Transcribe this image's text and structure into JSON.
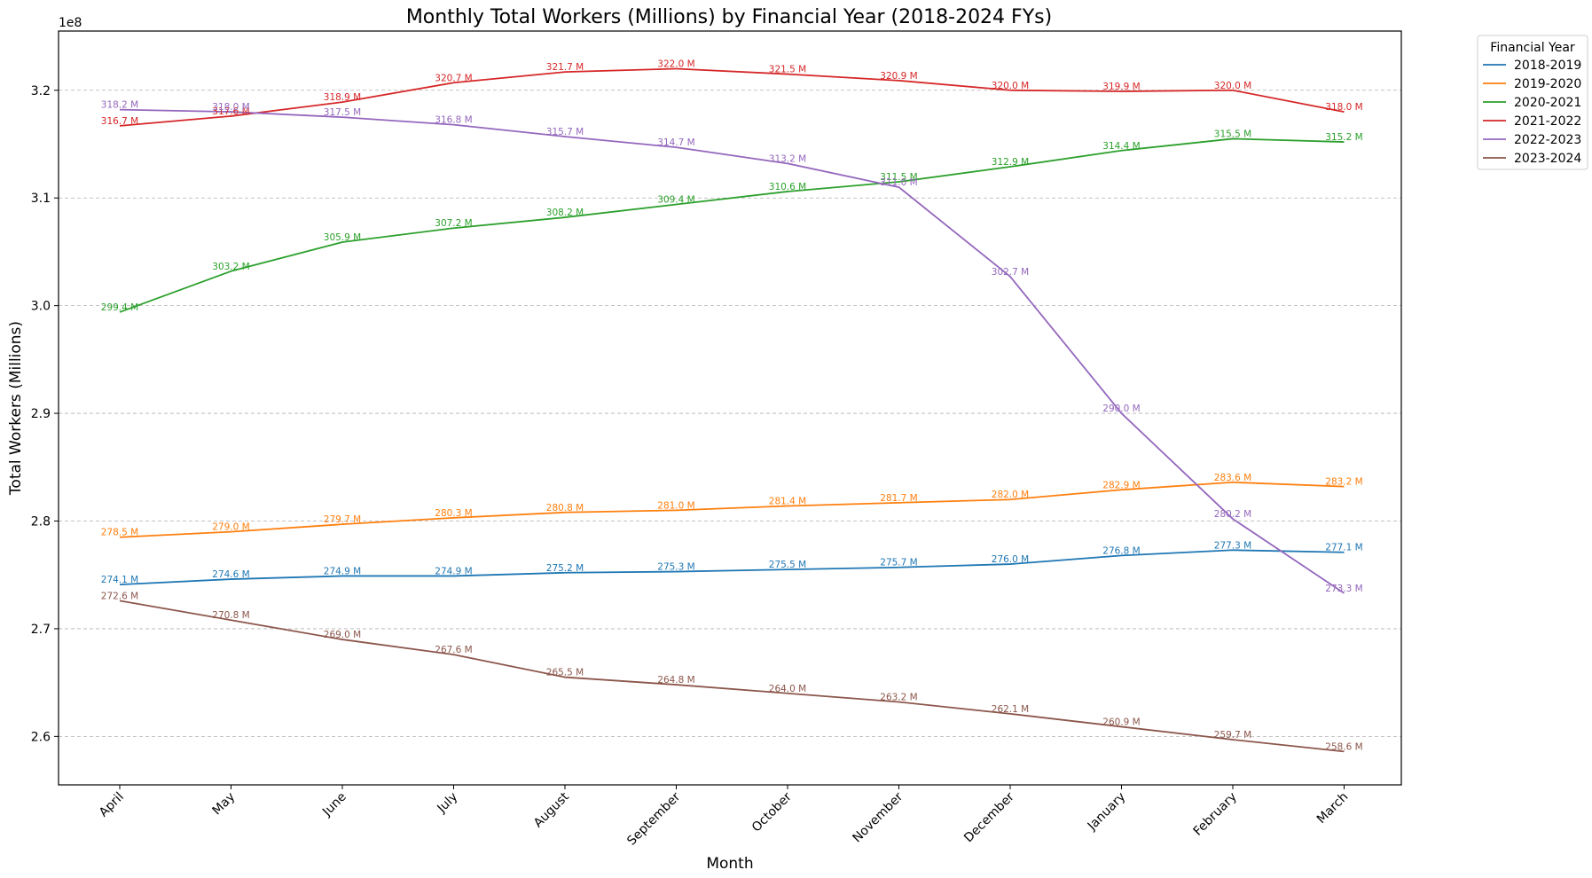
{
  "chart_data": {
    "type": "line",
    "title": "Monthly Total Workers (Millions) by Financial Year (2018-2024 FYs)",
    "xlabel": "Month",
    "ylabel": "Total Workers (Millions)",
    "y_offset_text": "1e8",
    "categories": [
      "April",
      "May",
      "June",
      "July",
      "August",
      "September",
      "October",
      "November",
      "December",
      "January",
      "February",
      "March"
    ],
    "ylim": [
      255500000,
      325500000
    ],
    "y_ticks": [
      260000000,
      270000000,
      280000000,
      290000000,
      300000000,
      310000000,
      320000000
    ],
    "y_tick_labels": [
      "2.6",
      "2.7",
      "2.8",
      "2.9",
      "3.0",
      "3.1",
      "3.2"
    ],
    "grid": "horizontal dashed",
    "legend_title": "Financial Year",
    "legend_position": "outside top-right",
    "series": [
      {
        "name": "2018-2019",
        "color": "#1f77b4",
        "values": [
          274.1,
          274.6,
          274.9,
          274.9,
          275.2,
          275.3,
          275.5,
          275.7,
          276.0,
          276.8,
          277.3,
          277.1
        ],
        "labels": [
          "274.1 M",
          "274.6 M",
          "274.9 M",
          "274.9 M",
          "275.2 M",
          "275.3 M",
          "275.5 M",
          "275.7 M",
          "276.0 M",
          "276.8 M",
          "277.3 M",
          "277.1 M"
        ]
      },
      {
        "name": "2019-2020",
        "color": "#ff7f0e",
        "values": [
          278.5,
          279.0,
          279.7,
          280.3,
          280.8,
          281.0,
          281.4,
          281.7,
          282.0,
          282.9,
          283.6,
          283.2
        ],
        "labels": [
          "278.5 M",
          "279.0 M",
          "279.7 M",
          "280.3 M",
          "280.8 M",
          "281.0 M",
          "281.4 M",
          "281.7 M",
          "282.0 M",
          "282.9 M",
          "283.6 M",
          "283.2 M"
        ]
      },
      {
        "name": "2020-2021",
        "color": "#2ca02c",
        "values": [
          299.4,
          303.2,
          305.9,
          307.2,
          308.2,
          309.4,
          310.6,
          311.5,
          312.9,
          314.4,
          315.5,
          315.2
        ],
        "labels": [
          "299.4 M",
          "303.2 M",
          "305.9 M",
          "307.2 M",
          "308.2 M",
          "309.4 M",
          "310.6 M",
          "311.5 M",
          "312.9 M",
          "314.4 M",
          "315.5 M",
          "315.2 M"
        ]
      },
      {
        "name": "2021-2022",
        "color": "#d62728",
        "values": [
          316.7,
          317.6,
          318.9,
          320.7,
          321.7,
          322.0,
          321.5,
          320.9,
          320.0,
          319.9,
          320.0,
          318.0
        ],
        "labels": [
          "316.7 M",
          "317.6 M",
          "318.9 M",
          "320.7 M",
          "321.7 M",
          "322.0 M",
          "321.5 M",
          "320.9 M",
          "320.0 M",
          "319.9 M",
          "320.0 M",
          "318.0 M"
        ]
      },
      {
        "name": "2022-2023",
        "color": "#9467bd",
        "values": [
          318.2,
          318.0,
          317.5,
          316.8,
          315.7,
          314.7,
          313.2,
          311.0,
          302.7,
          290.0,
          280.2,
          273.3
        ],
        "labels": [
          "318.2 M",
          "318.0 M",
          "317.5 M",
          "316.8 M",
          "315.7 M",
          "314.7 M",
          "313.2 M",
          "311.0 M",
          "302.7 M",
          "290.0 M",
          "280.2 M",
          "273.3 M"
        ]
      },
      {
        "name": "2023-2024",
        "color": "#8c564b",
        "values": [
          272.6,
          270.8,
          269.0,
          267.6,
          265.5,
          264.8,
          264.0,
          263.2,
          262.1,
          260.9,
          259.7,
          258.6
        ],
        "labels": [
          "272.6 M",
          "270.8 M",
          "269.0 M",
          "267.6 M",
          "265.5 M",
          "264.8 M",
          "264.0 M",
          "263.2 M",
          "262.1 M",
          "260.9 M",
          "259.7 M",
          "258.6 M"
        ]
      }
    ]
  }
}
